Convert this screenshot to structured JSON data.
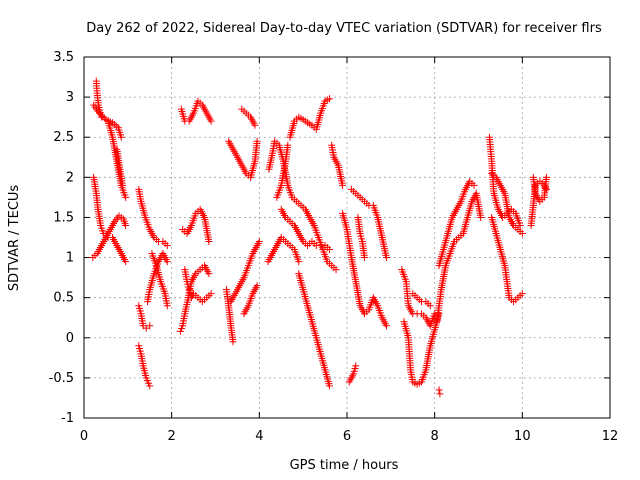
{
  "chart_data": {
    "type": "scatter",
    "title": "Day 262 of 2022, Sidereal Day-to-day VTEC variation (SDTVAR) for receiver flrs",
    "xlabel": "GPS time / hours",
    "ylabel": "SDTVAR / TECUs",
    "xlim": [
      0,
      12
    ],
    "ylim": [
      -1,
      3.5
    ],
    "xticks": [
      "0",
      "2",
      "4",
      "6",
      "8",
      "10",
      "12"
    ],
    "yticks": [
      "-1",
      "-0.5",
      "0",
      "0.5",
      "1",
      "1.5",
      "2",
      "2.5",
      "3",
      "3.5"
    ],
    "grid": true,
    "marker": "+",
    "color": "#ff0000",
    "tracks": [
      [
        [
          0.22,
          2.9
        ],
        [
          0.35,
          2.8
        ],
        [
          0.5,
          2.72
        ],
        [
          0.65,
          2.68
        ],
        [
          0.78,
          2.62
        ],
        [
          0.85,
          2.5
        ]
      ],
      [
        [
          0.22,
          2.0
        ],
        [
          0.28,
          1.8
        ],
        [
          0.32,
          1.6
        ],
        [
          0.38,
          1.4
        ],
        [
          0.45,
          1.3
        ],
        [
          0.55,
          1.25
        ],
        [
          0.65,
          1.25
        ],
        [
          0.75,
          1.15
        ],
        [
          0.85,
          1.05
        ],
        [
          0.95,
          0.95
        ]
      ],
      [
        [
          0.2,
          1.0
        ],
        [
          0.3,
          1.05
        ],
        [
          0.4,
          1.15
        ],
        [
          0.5,
          1.25
        ],
        [
          0.6,
          1.35
        ],
        [
          0.7,
          1.45
        ],
        [
          0.8,
          1.52
        ],
        [
          0.9,
          1.48
        ],
        [
          0.95,
          1.4
        ]
      ],
      [
        [
          0.28,
          3.2
        ],
        [
          0.3,
          3.05
        ],
        [
          0.33,
          2.9
        ],
        [
          0.4,
          2.75
        ]
      ],
      [
        [
          0.55,
          2.7
        ],
        [
          0.65,
          2.5
        ],
        [
          0.75,
          2.2
        ],
        [
          0.85,
          1.9
        ],
        [
          0.95,
          1.75
        ]
      ],
      [
        [
          0.75,
          2.35
        ],
        [
          0.82,
          2.1
        ],
        [
          0.88,
          1.9
        ]
      ],
      [
        [
          1.25,
          1.85
        ],
        [
          1.3,
          1.7
        ],
        [
          1.4,
          1.5
        ],
        [
          1.5,
          1.35
        ],
        [
          1.6,
          1.25
        ],
        [
          1.7,
          1.2
        ],
        [
          1.8,
          1.2
        ],
        [
          1.9,
          1.15
        ]
      ],
      [
        [
          1.25,
          0.4
        ],
        [
          1.3,
          0.3
        ],
        [
          1.35,
          0.15
        ],
        [
          1.42,
          0.12
        ],
        [
          1.5,
          0.15
        ]
      ],
      [
        [
          1.25,
          -0.1
        ],
        [
          1.3,
          -0.2
        ],
        [
          1.35,
          -0.35
        ],
        [
          1.42,
          -0.5
        ],
        [
          1.5,
          -0.6
        ]
      ],
      [
        [
          1.45,
          0.45
        ],
        [
          1.5,
          0.6
        ],
        [
          1.6,
          0.8
        ],
        [
          1.7,
          0.95
        ],
        [
          1.8,
          1.05
        ],
        [
          1.9,
          0.95
        ]
      ],
      [
        [
          1.55,
          1.05
        ],
        [
          1.65,
          0.9
        ],
        [
          1.75,
          0.7
        ],
        [
          1.85,
          0.55
        ],
        [
          1.9,
          0.4
        ]
      ],
      [
        [
          2.2,
          0.08
        ],
        [
          2.25,
          0.15
        ],
        [
          2.3,
          0.3
        ],
        [
          2.38,
          0.5
        ],
        [
          2.45,
          0.7
        ],
        [
          2.55,
          0.8
        ],
        [
          2.65,
          0.85
        ],
        [
          2.75,
          0.9
        ],
        [
          2.85,
          0.8
        ]
      ],
      [
        [
          2.25,
          1.35
        ],
        [
          2.35,
          1.3
        ],
        [
          2.45,
          1.4
        ],
        [
          2.55,
          1.55
        ],
        [
          2.65,
          1.6
        ],
        [
          2.75,
          1.5
        ],
        [
          2.85,
          1.2
        ]
      ],
      [
        [
          2.3,
          0.85
        ],
        [
          2.35,
          0.7
        ],
        [
          2.4,
          0.6
        ],
        [
          2.45,
          0.5
        ],
        [
          2.5,
          0.55
        ],
        [
          2.6,
          0.5
        ],
        [
          2.7,
          0.45
        ],
        [
          2.8,
          0.5
        ],
        [
          2.9,
          0.55
        ]
      ],
      [
        [
          2.22,
          2.85
        ],
        [
          2.3,
          2.7
        ],
        [
          2.4,
          2.7
        ],
        [
          2.5,
          2.8
        ],
        [
          2.6,
          2.95
        ],
        [
          2.7,
          2.9
        ],
        [
          2.8,
          2.8
        ],
        [
          2.9,
          2.7
        ]
      ],
      [
        [
          3.25,
          0.6
        ],
        [
          3.3,
          0.4
        ],
        [
          3.35,
          0.15
        ],
        [
          3.4,
          -0.05
        ]
      ],
      [
        [
          3.35,
          0.45
        ],
        [
          3.45,
          0.55
        ],
        [
          3.55,
          0.65
        ],
        [
          3.65,
          0.75
        ],
        [
          3.75,
          0.9
        ],
        [
          3.85,
          1.05
        ],
        [
          3.95,
          1.15
        ],
        [
          4.0,
          1.2
        ]
      ],
      [
        [
          3.3,
          2.45
        ],
        [
          3.4,
          2.35
        ],
        [
          3.5,
          2.25
        ],
        [
          3.6,
          2.15
        ],
        [
          3.7,
          2.05
        ],
        [
          3.8,
          2.0
        ],
        [
          3.9,
          2.2
        ],
        [
          3.95,
          2.45
        ]
      ],
      [
        [
          3.6,
          2.85
        ],
        [
          3.7,
          2.8
        ],
        [
          3.8,
          2.75
        ],
        [
          3.9,
          2.65
        ]
      ],
      [
        [
          3.65,
          0.3
        ],
        [
          3.75,
          0.4
        ],
        [
          3.85,
          0.55
        ],
        [
          3.95,
          0.65
        ]
      ],
      [
        [
          4.2,
          0.95
        ],
        [
          4.3,
          1.05
        ],
        [
          4.4,
          1.15
        ],
        [
          4.5,
          1.25
        ],
        [
          4.6,
          1.2
        ],
        [
          4.7,
          1.15
        ],
        [
          4.8,
          1.1
        ],
        [
          4.9,
          0.95
        ]
      ],
      [
        [
          4.22,
          2.1
        ],
        [
          4.3,
          2.3
        ],
        [
          4.35,
          2.45
        ],
        [
          4.45,
          2.4
        ],
        [
          4.55,
          2.2
        ],
        [
          4.65,
          1.9
        ],
        [
          4.75,
          1.75
        ],
        [
          4.85,
          1.7
        ],
        [
          4.95,
          1.65
        ],
        [
          5.05,
          1.6
        ],
        [
          5.15,
          1.5
        ],
        [
          5.25,
          1.4
        ],
        [
          5.35,
          1.25
        ],
        [
          5.45,
          1.1
        ],
        [
          5.55,
          0.95
        ],
        [
          5.65,
          0.9
        ],
        [
          5.75,
          0.85
        ]
      ],
      [
        [
          4.4,
          1.75
        ],
        [
          4.5,
          1.9
        ],
        [
          4.55,
          2.05
        ],
        [
          4.6,
          2.2
        ],
        [
          4.65,
          2.4
        ]
      ],
      [
        [
          4.5,
          1.6
        ],
        [
          4.6,
          1.5
        ],
        [
          4.7,
          1.45
        ],
        [
          4.8,
          1.4
        ],
        [
          4.9,
          1.3
        ],
        [
          5.0,
          1.2
        ],
        [
          5.1,
          1.15
        ],
        [
          5.2,
          1.2
        ],
        [
          5.3,
          1.15
        ],
        [
          5.4,
          1.15
        ],
        [
          5.5,
          1.15
        ],
        [
          5.6,
          1.1
        ]
      ],
      [
        [
          4.9,
          0.8
        ],
        [
          5.0,
          0.6
        ],
        [
          5.1,
          0.4
        ],
        [
          5.2,
          0.2
        ],
        [
          5.3,
          0.0
        ],
        [
          5.4,
          -0.2
        ],
        [
          5.5,
          -0.4
        ],
        [
          5.6,
          -0.6
        ]
      ],
      [
        [
          4.7,
          2.5
        ],
        [
          4.8,
          2.7
        ],
        [
          4.9,
          2.75
        ],
        [
          5.0,
          2.72
        ],
        [
          5.1,
          2.68
        ],
        [
          5.2,
          2.65
        ],
        [
          5.3,
          2.6
        ],
        [
          5.4,
          2.8
        ],
        [
          5.5,
          2.95
        ],
        [
          5.6,
          2.98
        ]
      ],
      [
        [
          5.65,
          2.4
        ],
        [
          5.7,
          2.25
        ],
        [
          5.8,
          2.15
        ],
        [
          5.9,
          1.9
        ]
      ],
      [
        [
          5.9,
          1.55
        ],
        [
          6.0,
          1.35
        ],
        [
          6.1,
          1.0
        ],
        [
          6.2,
          0.7
        ],
        [
          6.3,
          0.4
        ],
        [
          6.4,
          0.3
        ],
        [
          6.5,
          0.35
        ],
        [
          6.6,
          0.5
        ],
        [
          6.7,
          0.4
        ],
        [
          6.8,
          0.25
        ],
        [
          6.9,
          0.15
        ]
      ],
      [
        [
          6.05,
          -0.55
        ],
        [
          6.15,
          -0.45
        ],
        [
          6.2,
          -0.35
        ]
      ],
      [
        [
          6.1,
          1.85
        ],
        [
          6.2,
          1.8
        ],
        [
          6.3,
          1.75
        ],
        [
          6.4,
          1.7
        ],
        [
          6.5,
          1.65
        ],
        [
          6.6,
          1.65
        ],
        [
          6.7,
          1.5
        ],
        [
          6.8,
          1.25
        ],
        [
          6.9,
          1.0
        ]
      ],
      [
        [
          6.25,
          1.5
        ],
        [
          6.3,
          1.3
        ],
        [
          6.35,
          1.2
        ],
        [
          6.4,
          1.0
        ]
      ],
      [
        [
          7.25,
          0.85
        ],
        [
          7.35,
          0.7
        ],
        [
          7.4,
          0.4
        ],
        [
          7.5,
          0.3
        ],
        [
          7.6,
          0.3
        ],
        [
          7.7,
          0.3
        ],
        [
          7.8,
          0.25
        ],
        [
          7.9,
          0.15
        ],
        [
          8.0,
          0.3
        ]
      ],
      [
        [
          7.3,
          0.2
        ],
        [
          7.4,
          0.0
        ],
        [
          7.45,
          -0.4
        ],
        [
          7.5,
          -0.55
        ],
        [
          7.6,
          -0.58
        ],
        [
          7.7,
          -0.55
        ],
        [
          7.8,
          -0.4
        ],
        [
          7.9,
          -0.1
        ],
        [
          8.0,
          0.1
        ],
        [
          8.1,
          0.3
        ]
      ],
      [
        [
          7.5,
          0.55
        ],
        [
          7.6,
          0.5
        ],
        [
          7.7,
          0.45
        ],
        [
          7.8,
          0.45
        ],
        [
          7.9,
          0.4
        ]
      ],
      [
        [
          8.1,
          -0.65
        ],
        [
          8.12,
          -0.7
        ]
      ],
      [
        [
          8.05,
          0.2
        ],
        [
          8.15,
          0.6
        ],
        [
          8.25,
          0.9
        ],
        [
          8.35,
          1.05
        ],
        [
          8.45,
          1.2
        ],
        [
          8.55,
          1.25
        ],
        [
          8.65,
          1.3
        ],
        [
          8.75,
          1.5
        ],
        [
          8.85,
          1.7
        ],
        [
          8.95,
          1.8
        ],
        [
          9.05,
          1.5
        ]
      ],
      [
        [
          8.1,
          0.9
        ],
        [
          8.2,
          1.1
        ],
        [
          8.3,
          1.3
        ],
        [
          8.4,
          1.5
        ],
        [
          8.5,
          1.6
        ],
        [
          8.6,
          1.7
        ],
        [
          8.7,
          1.85
        ],
        [
          8.8,
          1.95
        ],
        [
          8.9,
          1.9
        ]
      ],
      [
        [
          9.25,
          2.5
        ],
        [
          9.3,
          2.2
        ],
        [
          9.35,
          1.8
        ],
        [
          9.45,
          1.6
        ],
        [
          9.55,
          1.5
        ],
        [
          9.65,
          1.55
        ],
        [
          9.75,
          1.6
        ],
        [
          9.85,
          1.55
        ],
        [
          9.95,
          1.4
        ]
      ],
      [
        [
          9.3,
          1.5
        ],
        [
          9.4,
          1.3
        ],
        [
          9.5,
          1.1
        ],
        [
          9.6,
          0.9
        ],
        [
          9.65,
          0.7
        ],
        [
          9.7,
          0.5
        ],
        [
          9.8,
          0.45
        ],
        [
          9.9,
          0.5
        ],
        [
          10.0,
          0.55
        ]
      ],
      [
        [
          9.3,
          2.05
        ],
        [
          9.4,
          2.0
        ],
        [
          9.5,
          1.9
        ],
        [
          9.6,
          1.8
        ],
        [
          9.7,
          1.5
        ],
        [
          9.8,
          1.4
        ],
        [
          9.9,
          1.35
        ],
        [
          10.0,
          1.3
        ]
      ],
      [
        [
          10.2,
          1.4
        ],
        [
          10.25,
          1.65
        ],
        [
          10.3,
          1.9
        ],
        [
          10.4,
          1.95
        ],
        [
          10.5,
          1.9
        ],
        [
          10.55,
          1.85
        ]
      ],
      [
        [
          10.25,
          2.0
        ],
        [
          10.3,
          1.8
        ],
        [
          10.4,
          1.7
        ],
        [
          10.5,
          1.75
        ],
        [
          10.55,
          2.0
        ]
      ]
    ]
  }
}
